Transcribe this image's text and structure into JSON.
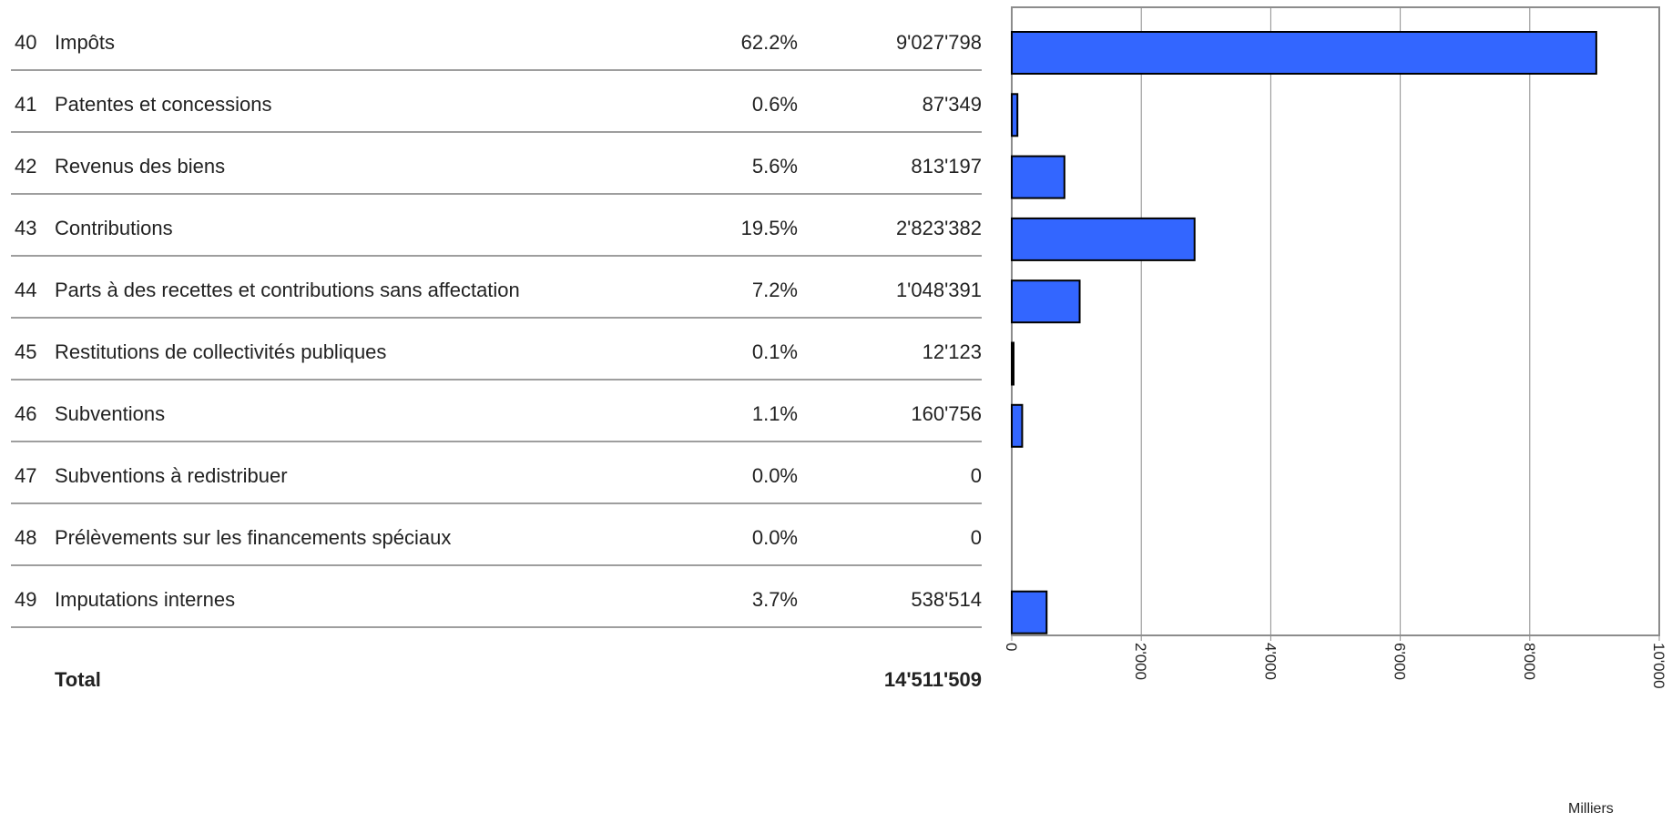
{
  "table": {
    "rows": [
      {
        "code": "40",
        "label": "Impôts",
        "pct": "62.2%",
        "amount": "9'027'798"
      },
      {
        "code": "41",
        "label": "Patentes et concessions",
        "pct": "0.6%",
        "amount": "87'349"
      },
      {
        "code": "42",
        "label": "Revenus des biens",
        "pct": "5.6%",
        "amount": "813'197"
      },
      {
        "code": "43",
        "label": "Contributions",
        "pct": "19.5%",
        "amount": "2'823'382"
      },
      {
        "code": "44",
        "label": "Parts à des recettes et contributions sans affectation",
        "pct": "7.2%",
        "amount": "1'048'391"
      },
      {
        "code": "45",
        "label": "Restitutions de collectivités publiques",
        "pct": "0.1%",
        "amount": "12'123"
      },
      {
        "code": "46",
        "label": "Subventions",
        "pct": "1.1%",
        "amount": "160'756"
      },
      {
        "code": "47",
        "label": "Subventions à redistribuer",
        "pct": "0.0%",
        "amount": "0"
      },
      {
        "code": "48",
        "label": "Prélèvements sur les financements spéciaux",
        "pct": "0.0%",
        "amount": "0"
      },
      {
        "code": "49",
        "label": "Imputations internes",
        "pct": "3.7%",
        "amount": "538'514"
      }
    ],
    "total_label": "Total",
    "total_value": "14'511'509"
  },
  "colors": {
    "bar": "#3366FF",
    "bar_border": "#000000",
    "grid": "#8c8c8c",
    "frame": "#8c8c8c"
  },
  "chart_data": {
    "type": "bar",
    "orientation": "horizontal",
    "categories": [
      "40",
      "41",
      "42",
      "43",
      "44",
      "45",
      "46",
      "47",
      "48",
      "49"
    ],
    "values": [
      9027.798,
      87.349,
      813.197,
      2823.382,
      1048.391,
      12.123,
      160.756,
      0,
      0,
      538.514
    ],
    "xlim": [
      0,
      10000
    ],
    "ticks": [
      "0",
      "2'000",
      "4'000",
      "6'000",
      "8'000",
      "10'000"
    ],
    "tick_values": [
      0,
      2000,
      4000,
      6000,
      8000,
      10000
    ],
    "xlabel": "Milliers",
    "grid": true
  }
}
